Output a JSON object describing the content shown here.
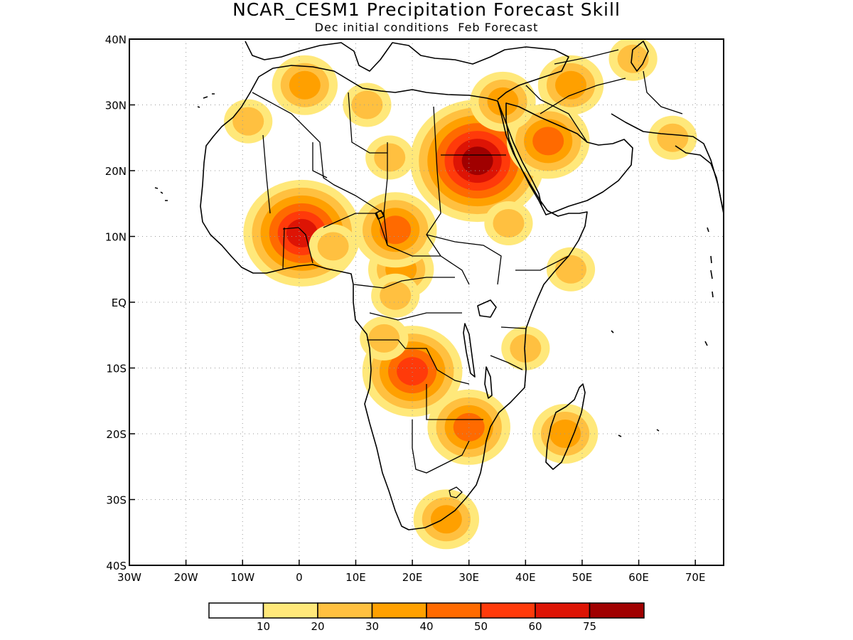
{
  "title": "NCAR_CESM1 Precipitation Forecast Skill",
  "subtitle": "Dec initial conditions  Feb Forecast",
  "map": {
    "lon_range": [
      -30,
      75
    ],
    "lat_range": [
      -40,
      40
    ],
    "lon_ticks": [
      {
        "v": -30,
        "label": "30W"
      },
      {
        "v": -20,
        "label": "20W"
      },
      {
        "v": -10,
        "label": "10W"
      },
      {
        "v": 0,
        "label": "0"
      },
      {
        "v": 10,
        "label": "10E"
      },
      {
        "v": 20,
        "label": "20E"
      },
      {
        "v": 30,
        "label": "30E"
      },
      {
        "v": 40,
        "label": "40E"
      },
      {
        "v": 50,
        "label": "50E"
      },
      {
        "v": 60,
        "label": "60E"
      },
      {
        "v": 70,
        "label": "70E"
      }
    ],
    "lat_ticks": [
      {
        "v": 40,
        "label": "40N"
      },
      {
        "v": 30,
        "label": "30N"
      },
      {
        "v": 20,
        "label": "20N"
      },
      {
        "v": 10,
        "label": "10N"
      },
      {
        "v": 0,
        "label": "EQ"
      },
      {
        "v": -10,
        "label": "10S"
      },
      {
        "v": -20,
        "label": "20S"
      },
      {
        "v": -30,
        "label": "30S"
      },
      {
        "v": -40,
        "label": "40S"
      }
    ],
    "grid": "dotted",
    "land_fill": "#ffffff",
    "coastline_color": "#000000"
  },
  "skill_regions": [
    {
      "lon": 31.5,
      "lat": 21.5,
      "level": 75
    },
    {
      "lon": 0.5,
      "lat": 10.5,
      "level": 60
    },
    {
      "lon": 20,
      "lat": -10.5,
      "level": 50
    },
    {
      "lon": 30,
      "lat": -19,
      "level": 40
    },
    {
      "lon": 44,
      "lat": 24.5,
      "level": 40
    },
    {
      "lon": 1,
      "lat": 33,
      "level": 30
    },
    {
      "lon": 18,
      "lat": 5,
      "level": 30
    },
    {
      "lon": 47,
      "lat": -20,
      "level": 30
    },
    {
      "lon": 48,
      "lat": 33,
      "level": 30
    },
    {
      "lon": 17,
      "lat": 11,
      "level": 40
    },
    {
      "lon": 26,
      "lat": -33,
      "level": 30
    },
    {
      "lon": 6,
      "lat": 8.5,
      "level": 20
    },
    {
      "lon": 16,
      "lat": 22,
      "level": 20
    },
    {
      "lon": 17,
      "lat": 1,
      "level": 20
    },
    {
      "lon": 15,
      "lat": -5.5,
      "level": 20
    },
    {
      "lon": 59,
      "lat": 37,
      "level": 20
    },
    {
      "lon": 12,
      "lat": 30,
      "level": 20
    },
    {
      "lon": -9,
      "lat": 27.5,
      "level": 20
    },
    {
      "lon": 37,
      "lat": 12,
      "level": 20
    },
    {
      "lon": 48,
      "lat": 5,
      "level": 20
    },
    {
      "lon": 40,
      "lat": -7,
      "level": 20
    },
    {
      "lon": 66,
      "lat": 25,
      "level": 20
    },
    {
      "lon": 36,
      "lat": 30.5,
      "level": 30
    }
  ],
  "colorbar": {
    "colors": [
      "#ffffff",
      "#ffe87a",
      "#ffc040",
      "#ffa000",
      "#ff6a00",
      "#ff3a0a",
      "#dd1405",
      "#a00000"
    ],
    "labels": [
      "10",
      "20",
      "30",
      "40",
      "50",
      "60",
      "75"
    ]
  }
}
